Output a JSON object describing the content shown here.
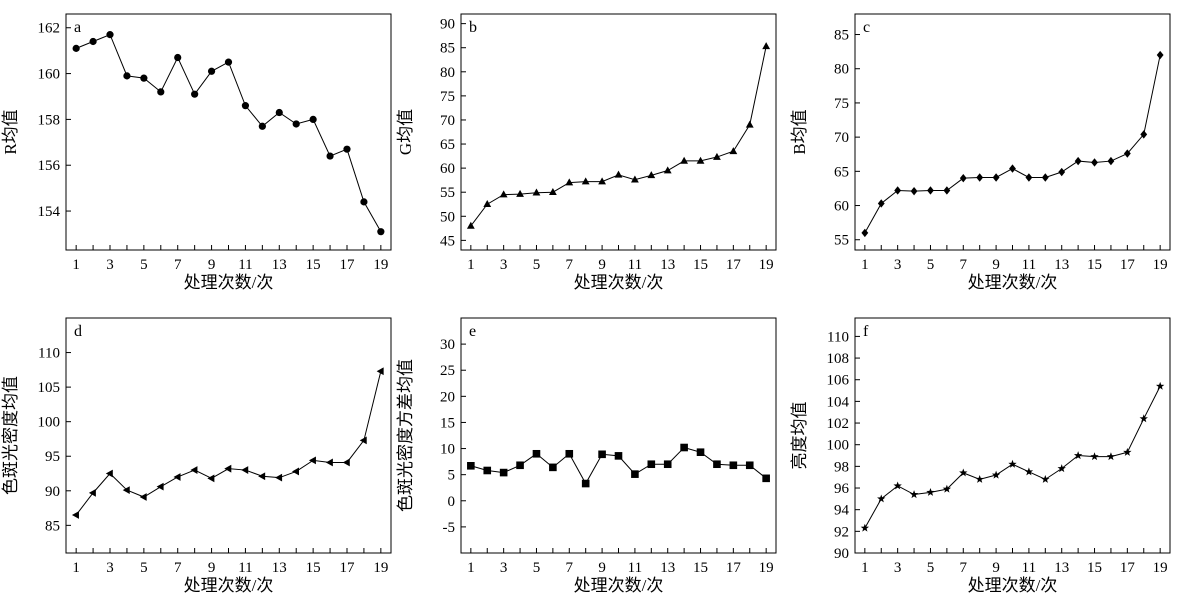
{
  "chart_data": [
    {
      "type": "line",
      "panel_label": "a",
      "xlabel": "处理次数/次",
      "ylabel": "R均值",
      "x": [
        1,
        2,
        3,
        4,
        5,
        6,
        7,
        8,
        9,
        10,
        11,
        12,
        13,
        14,
        15,
        16,
        17,
        18,
        19
      ],
      "xticks": [
        1,
        3,
        5,
        7,
        9,
        11,
        13,
        15,
        17,
        19
      ],
      "xlim": [
        0.4,
        19.6
      ],
      "ylim": [
        152.3,
        162.6
      ],
      "yticks": [
        154,
        156,
        158,
        160,
        162
      ],
      "marker": "circle",
      "series": [
        {
          "values": [
            161.1,
            161.4,
            161.7,
            159.9,
            159.8,
            159.2,
            160.7,
            159.1,
            160.1,
            160.5,
            158.6,
            157.7,
            158.3,
            157.8,
            158.0,
            156.4,
            156.7,
            154.4,
            153.1
          ]
        }
      ],
      "grid": false
    },
    {
      "type": "line",
      "panel_label": "b",
      "xlabel": "处理次数/次",
      "ylabel": "G均值",
      "x": [
        1,
        2,
        3,
        4,
        5,
        6,
        7,
        8,
        9,
        10,
        11,
        12,
        13,
        14,
        15,
        16,
        17,
        18,
        19
      ],
      "xticks": [
        1,
        3,
        5,
        7,
        9,
        11,
        13,
        15,
        17,
        19
      ],
      "xlim": [
        0.4,
        19.6
      ],
      "ylim": [
        43,
        92
      ],
      "yticks": [
        45,
        50,
        55,
        60,
        65,
        70,
        75,
        80,
        85,
        90
      ],
      "marker": "triangle-up",
      "series": [
        {
          "values": [
            48.0,
            52.5,
            54.5,
            54.6,
            54.9,
            55.0,
            57.0,
            57.2,
            57.2,
            58.6,
            57.6,
            58.5,
            59.5,
            61.5,
            61.5,
            62.3,
            63.5,
            69.0,
            85.3
          ]
        }
      ],
      "grid": false
    },
    {
      "type": "line",
      "panel_label": "c",
      "xlabel": "处理次数/次",
      "ylabel": "B均值",
      "x": [
        1,
        2,
        3,
        4,
        5,
        6,
        7,
        8,
        9,
        10,
        11,
        12,
        13,
        14,
        15,
        16,
        17,
        18,
        19
      ],
      "xticks": [
        1,
        3,
        5,
        7,
        9,
        11,
        13,
        15,
        17,
        19
      ],
      "xlim": [
        0.4,
        19.6
      ],
      "ylim": [
        53.5,
        88
      ],
      "yticks": [
        55,
        60,
        65,
        70,
        75,
        80,
        85
      ],
      "marker": "diamond",
      "series": [
        {
          "values": [
            56.0,
            60.3,
            62.2,
            62.1,
            62.2,
            62.2,
            64.0,
            64.1,
            64.1,
            65.4,
            64.1,
            64.1,
            64.9,
            66.5,
            66.3,
            66.5,
            67.6,
            70.4,
            82.0
          ]
        }
      ],
      "grid": false
    },
    {
      "type": "line",
      "panel_label": "d",
      "xlabel": "处理次数/次",
      "ylabel": "色斑光密度均值",
      "x": [
        1,
        2,
        3,
        4,
        5,
        6,
        7,
        8,
        9,
        10,
        11,
        12,
        13,
        14,
        15,
        16,
        17,
        18,
        19
      ],
      "xticks": [
        1,
        3,
        5,
        7,
        9,
        11,
        13,
        15,
        17,
        19
      ],
      "xlim": [
        0.4,
        19.6
      ],
      "ylim": [
        81,
        115
      ],
      "yticks": [
        85,
        90,
        95,
        100,
        105,
        110
      ],
      "marker": "triangle-left",
      "series": [
        {
          "values": [
            86.5,
            89.7,
            92.5,
            90.1,
            89.1,
            90.6,
            92.0,
            93.0,
            91.8,
            93.2,
            93.0,
            92.1,
            91.9,
            92.8,
            94.4,
            94.1,
            94.1,
            97.3,
            107.3
          ]
        }
      ],
      "grid": false
    },
    {
      "type": "line",
      "panel_label": "e",
      "xlabel": "处理次数/次",
      "ylabel": "色斑光密度方差均值",
      "x": [
        1,
        2,
        3,
        4,
        5,
        6,
        7,
        8,
        9,
        10,
        11,
        12,
        13,
        14,
        15,
        16,
        17,
        18,
        19
      ],
      "xticks": [
        1,
        3,
        5,
        7,
        9,
        11,
        13,
        15,
        17,
        19
      ],
      "xlim": [
        0.4,
        19.6
      ],
      "ylim": [
        -10,
        35
      ],
      "yticks": [
        -5,
        0,
        5,
        10,
        15,
        20,
        25,
        30
      ],
      "marker": "square",
      "series": [
        {
          "values": [
            6.7,
            5.8,
            5.4,
            6.8,
            9.0,
            6.4,
            9.0,
            3.3,
            8.9,
            8.6,
            5.1,
            7.0,
            7.0,
            10.2,
            9.3,
            7.0,
            6.8,
            6.8,
            4.3
          ]
        }
      ],
      "grid": false
    },
    {
      "type": "line",
      "panel_label": "f",
      "xlabel": "处理次数/次",
      "ylabel": "亮度均值",
      "x": [
        1,
        2,
        3,
        4,
        5,
        6,
        7,
        8,
        9,
        10,
        11,
        12,
        13,
        14,
        15,
        16,
        17,
        18,
        19
      ],
      "xticks": [
        1,
        3,
        5,
        7,
        9,
        11,
        13,
        15,
        17,
        19
      ],
      "xlim": [
        0.4,
        19.6
      ],
      "ylim": [
        90,
        111.7
      ],
      "yticks": [
        90,
        92,
        94,
        96,
        98,
        100,
        102,
        104,
        106,
        108,
        110
      ],
      "marker": "star",
      "series": [
        {
          "values": [
            92.3,
            95.0,
            96.2,
            95.4,
            95.6,
            95.9,
            97.4,
            96.8,
            97.2,
            98.2,
            97.5,
            96.8,
            97.8,
            99.0,
            98.9,
            98.9,
            99.3,
            102.4,
            105.4
          ]
        }
      ],
      "grid": false
    }
  ]
}
